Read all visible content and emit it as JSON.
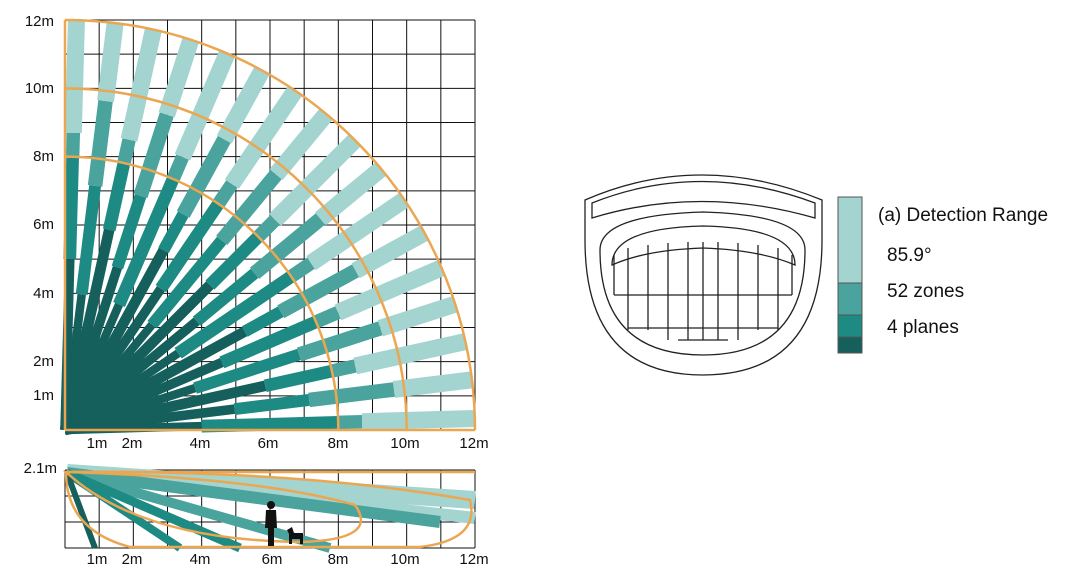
{
  "top_view": {
    "y_labels": [
      "12m",
      "10m",
      "8m",
      "6m",
      "4m",
      "2m",
      "1m"
    ],
    "x_labels": [
      "1m",
      "2m",
      "4m",
      "6m",
      "8m",
      "10m",
      "12m"
    ]
  },
  "side_view": {
    "y_label": "2.1m",
    "x_labels": [
      "1m",
      "2m",
      "4m",
      "6m",
      "8m",
      "10m",
      "12m"
    ]
  },
  "legend": {
    "title": "(a) Detection Range",
    "items": [
      "85.9°",
      "52 zones",
      "4 planes"
    ]
  }
}
